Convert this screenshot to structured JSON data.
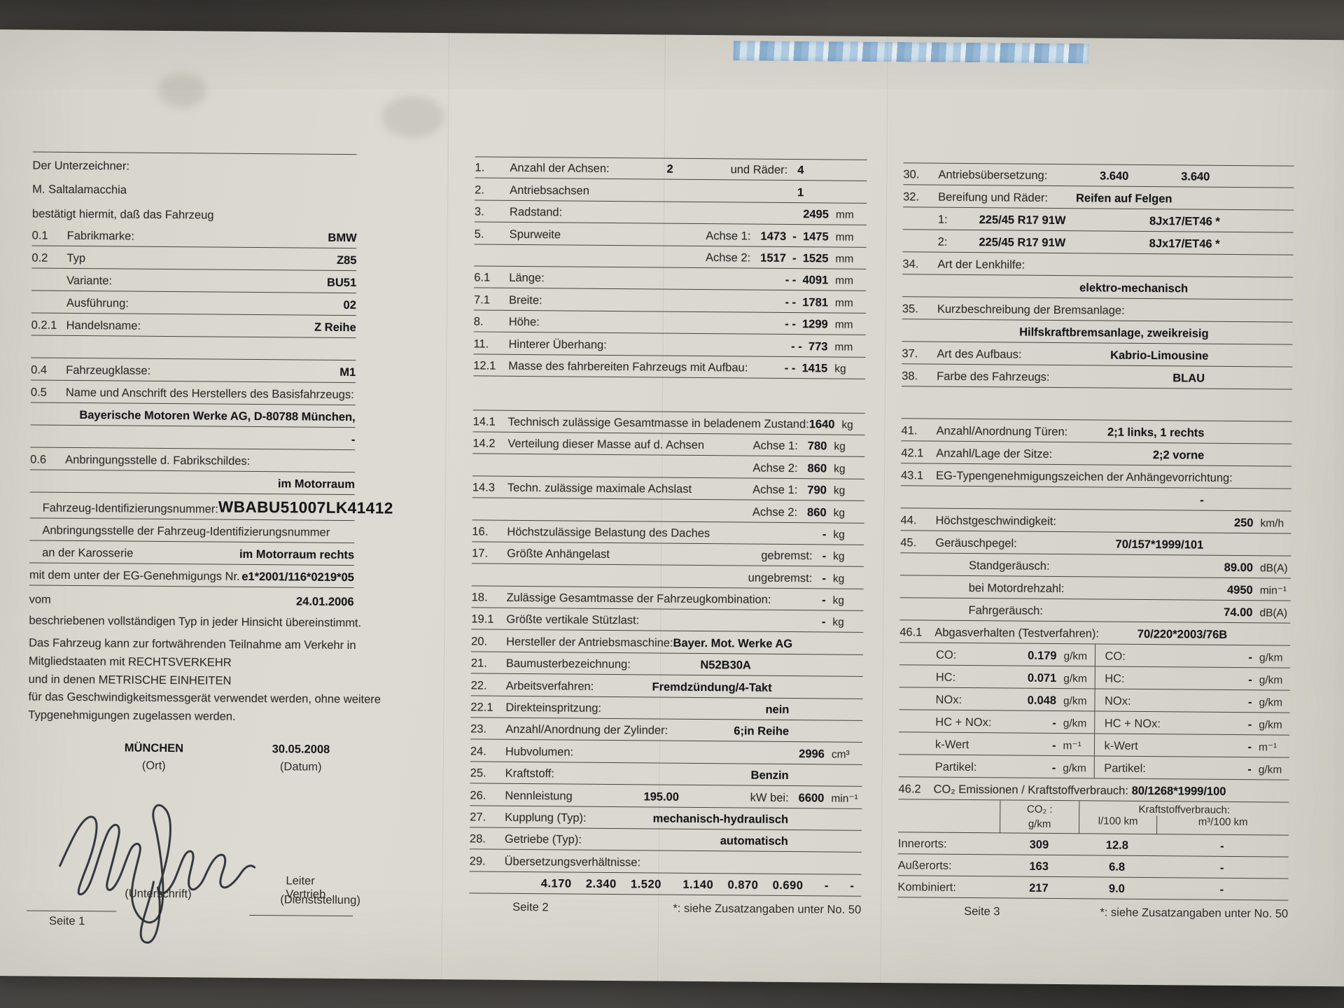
{
  "page1": {
    "rows": [
      {
        "cls": "intro topline noline",
        "l": "Der Unterzeichner:",
        "h": 1.07
      },
      {
        "cls": "intro noline",
        "l": "M. Saltalamacchia",
        "h": 1.07
      },
      {
        "cls": "intro noline",
        "l": "bestätigt hiermit, daß das Fahrzeug",
        "h": 1.07
      },
      {
        "n": "0.1",
        "l": "Fabrikmarke:",
        "v": "BMW"
      },
      {
        "n": "0.2",
        "l": "Typ",
        "v": "Z85"
      },
      {
        "n": "",
        "l": "Variante:",
        "v": "BU51"
      },
      {
        "n": "",
        "l": "Ausführung:",
        "v": "02"
      },
      {
        "n": "0.2.1",
        "l": "Handelsname:",
        "v": "Z Reihe"
      },
      {
        "cls": "gap"
      },
      {
        "n": "0.4",
        "l": "Fahrzeugklasse:",
        "v": "M1"
      },
      {
        "n": "0.5",
        "l": "Name und Anschrift des Herstellers des Basisfahrzeugs:"
      },
      {
        "v": "Bayerische Motoren Werke AG, D-80788 München,"
      },
      {
        "v": "-"
      },
      {
        "n": "0.6",
        "l": "Anbringungsstelle d. Fabrikschildes:"
      },
      {
        "v": "im Motorraum"
      },
      {
        "cls": "vin indsm",
        "l": "Fahrzeug-Identifizierungsnummer:",
        "v": "WBABU51007LK41412",
        "h": 1.18
      },
      {
        "cls": "indsm",
        "l": "Anbringungsstelle der Fahrzeug-Identifizierungsnummer"
      },
      {
        "cls": "indsm",
        "l": "an der Karosserie",
        "v": "im Motorraum rechts"
      },
      {
        "l": "mit dem unter der EG-Genehmigungs Nr.",
        "v": "e1*2001/116*0219*05"
      },
      {
        "cls": "noline",
        "l": "vom",
        "v": "24.01.2006",
        "h": 1.05
      },
      {
        "cls": "para noline",
        "l": "beschriebenen vollständigen Typ in jeder Hinsicht übereinstimmt.",
        "h": 0.95
      },
      {
        "cls": "para noline",
        "l": "Das Fahrzeug kann zur fortwährenden Teilnahme am Verkehr in",
        "h": 1.0
      },
      {
        "cls": "para noline",
        "l": "Mitgliedstaaten mit RECHTSVERKEHR",
        "h": 0.8
      },
      {
        "cls": "para noline",
        "l": "und in denen METRISCHE EINHEITEN",
        "h": 0.8
      },
      {
        "cls": "para noline",
        "l": "für das Geschwindigkeitsmessgerät verwendet werden, ohne weitere",
        "h": 0.8
      },
      {
        "cls": "para noline",
        "l": "Typgenehmigungen zugelassen werden.",
        "h": 0.8
      }
    ],
    "ort": "MÜNCHEN",
    "ort_sub": "(Ort)",
    "datum": "30.05.2008",
    "datum_sub": "(Datum)",
    "unterschrift": "(Unterschrift)",
    "dienst1": "Leiter Vertrieb",
    "dienst2": "(Dienststellung)",
    "footer": "Seite 1"
  },
  "page2": {
    "rows": [
      {
        "cls": "topline vm90",
        "n": "1.",
        "l": "Anzahl der Achsen:",
        "mv": "2",
        "p": "und Räder:",
        "v": "4"
      },
      {
        "cls": "vm90",
        "n": "2.",
        "l": "Antriebsachsen",
        "v": "1"
      },
      {
        "n": "3.",
        "l": "Radstand:",
        "v": "2495",
        "u": "mm"
      },
      {
        "n": "5.",
        "l": "Spurweite",
        "p": "Achse 1:",
        "v": "1473  -  1475",
        "u": "mm"
      },
      {
        "p": "Achse 2:",
        "v": "1517  -  1525",
        "u": "mm"
      },
      {
        "n": "6.1",
        "l": "Länge:",
        "v": "- -  4091",
        "u": "mm"
      },
      {
        "n": "7.1",
        "l": "Breite:",
        "v": "- -  1781",
        "u": "mm"
      },
      {
        "n": "8.",
        "l": "Höhe:",
        "v": "- -  1299",
        "u": "mm"
      },
      {
        "n": "11.",
        "l": "Hinterer Überhang:",
        "v": "- -  773",
        "u": "mm"
      },
      {
        "n": "12.1",
        "l": "Masse des fahrbereiten Fahrzeugs mit Aufbau:",
        "v": "- -  1415",
        "u": "kg"
      },
      {
        "cls": "gap",
        "h": 1.55
      },
      {
        "n": "14.1",
        "l": "Technisch zulässige Gesamtmasse in beladenem Zustand:",
        "v": "1640",
        "u": "kg"
      },
      {
        "n": "14.2",
        "l": "Verteilung dieser Masse auf d. Achsen",
        "p": "Achse 1:",
        "v": "780",
        "u": "kg"
      },
      {
        "p": "Achse 2:",
        "v": "860",
        "u": "kg"
      },
      {
        "n": "14.3",
        "l": "Techn. zulässige maximale Achslast",
        "p": "Achse 1:",
        "v": "790",
        "u": "kg"
      },
      {
        "p": "Achse 2:",
        "v": "860",
        "u": "kg"
      },
      {
        "n": "16.",
        "l": "Höchstzulässige Belastung des Daches",
        "v": "-",
        "u": "kg"
      },
      {
        "n": "17.",
        "l": "Größte Anhängelast",
        "p": "gebremst:",
        "v": "-",
        "u": "kg"
      },
      {
        "p": "ungebremst:",
        "v": "-",
        "u": "kg"
      },
      {
        "n": "18.",
        "l": "Zulässige Gesamtmasse der Fahrzeugkombination:",
        "v": "-",
        "u": "kg"
      },
      {
        "n": "19.1",
        "l": "Größte vertikale Stützlast:",
        "v": "-",
        "u": "kg"
      },
      {
        "cls": "vm120",
        "n": "20.",
        "l": "Hersteller der Antriebsmaschine:",
        "v": "Bayer. Mot. Werke AG"
      },
      {
        "cls": "vm160",
        "n": "21.",
        "l": "Baumusterbezeichnung:",
        "v": "N52B30A"
      },
      {
        "cls": "vm130",
        "n": "22.",
        "l": "Arbeitsverfahren:",
        "v": "Fremdzündung/4-Takt"
      },
      {
        "cls": "vm105",
        "n": "22.1",
        "l": "Direkteinspritzung:",
        "v": "nein"
      },
      {
        "cls": "vm105",
        "n": "23.",
        "l": "Anzahl/Anordnung der Zylinder:",
        "v": "6;in Reihe"
      },
      {
        "n": "24.",
        "l": "Hubvolumen:",
        "v": "2996",
        "u": "cm³"
      },
      {
        "cls": "vm105",
        "n": "25.",
        "l": "Kraftstoff:",
        "v": "Benzin"
      },
      {
        "n": "26.",
        "l": "Nennleistung",
        "mv": "195.00",
        "p": "kW bei:",
        "v": "6600",
        "u": "min⁻¹"
      },
      {
        "cls": "vm105",
        "n": "27.",
        "l": "Kupplung (Typ):",
        "v": "mechanisch-hydraulisch"
      },
      {
        "cls": "vm105",
        "n": "28.",
        "l": "Getriebe (Typ):",
        "v": "automatisch"
      },
      {
        "n": "29.",
        "l": "Übersetzungsverhältnisse:"
      },
      {
        "cls": "ratios",
        "v": "4.170    2.340    1.520      1.140    0.870    0.690      -      -"
      }
    ],
    "footer": "Seite 2",
    "footnote": "*: siehe Zusatzangaben unter No. 50"
  },
  "page3": {
    "rows": [
      {
        "cls": "topline vm120",
        "n": "30.",
        "l": "Antriebsübersetzung:",
        "mv": "3.640",
        "v": "3.640"
      },
      {
        "cls": "leftmv",
        "n": "32.",
        "l": "Bereifung und Räder:",
        "mv": "Reifen auf Felgen"
      },
      {
        "cls": "vm105",
        "n": "",
        "l": "1:",
        "lv": "225/45 R17 91W",
        "v": "8Jx17/ET46 *"
      },
      {
        "cls": "vm105",
        "n": "",
        "l": "2:",
        "lv": "225/45 R17 91W",
        "v": "8Jx17/ET46 *"
      },
      {
        "n": "34.",
        "l": "Art der Lenkhilfe:"
      },
      {
        "cls": "vm150",
        "v": "elektro-mechanisch"
      },
      {
        "n": "35.",
        "l": "Kurzbeschreibung der Bremsanlage:"
      },
      {
        "cls": "vm120",
        "v": "Hilfskraftbremsanlage, zweikreisig"
      },
      {
        "cls": "vm120",
        "n": "37.",
        "l": "Art des Aufbaus:",
        "v": "Kabrio-Limousine"
      },
      {
        "cls": "vm125",
        "n": "38.",
        "l": "Farbe des Fahrzeugs:",
        "v": "BLAU"
      },
      {
        "cls": "gap",
        "h": 1.45
      },
      {
        "cls": "vm125",
        "n": "41.",
        "l": "Anzahl/Anordnung Türen:",
        "v": "2;1 links, 1 rechts"
      },
      {
        "cls": "vm125",
        "n": "42.1",
        "l": "Anzahl/Lage der Sitze:",
        "v": "2;2 vorne"
      },
      {
        "n": "43.1",
        "l": "EG-Typengenehmigungszeichen der Anhängevorrichtung:"
      },
      {
        "cls": "vm125",
        "v": "-"
      },
      {
        "n": "44.",
        "l": "Höchstgeschwindigkeit:",
        "v": "250",
        "u": "km/h"
      },
      {
        "cls": "vm125",
        "n": "45.",
        "l": "Geräuschpegel:",
        "v": "70/157*1999/101"
      },
      {
        "cls": "ind2",
        "l": "Standgeräusch:",
        "v": "89.00",
        "u": "dB(A)"
      },
      {
        "cls": "ind2",
        "l": "bei Motordrehzahl:",
        "v": "4950",
        "u": "min⁻¹"
      },
      {
        "cls": "ind2",
        "l": "Fahrgeräusch:",
        "v": "74.00",
        "u": "dB(A)"
      },
      {
        "cls": "vm90",
        "n": "46.1",
        "l": "Abgasverhalten (Testverfahren):",
        "v": "70/220*2003/76B"
      },
      {
        "type": "emis"
      },
      {
        "cls": "vm90",
        "n": "46.2",
        "l": "CO₂ Emissionen / Kraftstoffverbrauch:",
        "v": "80/1268*1999/100"
      },
      {
        "type": "fuel"
      }
    ],
    "emis": [
      {
        "ll": "CO:",
        "lv": "0.179",
        "lu": "g/km",
        "rl": "CO:",
        "rv": "-",
        "ru": "g/km"
      },
      {
        "ll": "HC:",
        "lv": "0.071",
        "lu": "g/km",
        "rl": "HC:",
        "rv": "-",
        "ru": "g/km"
      },
      {
        "ll": "NOx:",
        "lv": "0.048",
        "lu": "g/km",
        "rl": "NOx:",
        "rv": "-",
        "ru": "g/km"
      },
      {
        "ll": "HC + NOx:",
        "lv": "-",
        "lu": "g/km",
        "rl": "HC + NOx:",
        "rv": "-",
        "ru": "g/km"
      },
      {
        "ll": "k-Wert",
        "lv": "-",
        "lu": "m⁻¹",
        "rl": "k-Wert",
        "rv": "-",
        "ru": "m⁻¹"
      },
      {
        "ll": "Partikel:",
        "lv": "-",
        "lu": "g/km",
        "rl": "Partikel:",
        "rv": "-",
        "ru": "g/km"
      }
    ],
    "fuel": {
      "h_co2a": "CO₂ :",
      "h_co2b": "g/km",
      "h_kv": "Kraftstoffverbrauch:",
      "h_l": "l/100 km",
      "h_m": "m³/100 km",
      "rows": [
        {
          "l": "Innerorts:",
          "co2": "309",
          "l100": "12.8",
          "m100": "-"
        },
        {
          "l": "Außerorts:",
          "co2": "163",
          "l100": "6.8",
          "m100": "-"
        },
        {
          "l": "Kombiniert:",
          "co2": "217",
          "l100": "9.0",
          "m100": "-"
        }
      ]
    },
    "footer": "Seite 3",
    "footnote": "*: siehe Zusatzangaben unter No. 50"
  }
}
